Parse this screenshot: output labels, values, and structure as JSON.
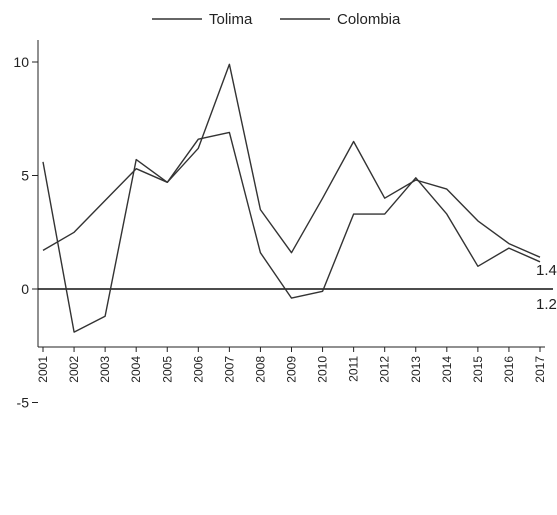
{
  "chart_data": {
    "type": "line",
    "title": "",
    "xlabel": "",
    "ylabel": "",
    "x": [
      "2001",
      "2002",
      "2003",
      "2004",
      "2005",
      "2006",
      "2007",
      "2008",
      "2009",
      "2010",
      "2011",
      "2012",
      "2013",
      "2014",
      "2015",
      "2016",
      "2017"
    ],
    "ylim": [
      -6,
      11
    ],
    "yticks": [
      -5,
      0,
      5,
      10
    ],
    "grid": false,
    "legend_position": "top-center",
    "series": [
      {
        "name": "Tolima",
        "values": [
          5.6,
          -1.9,
          -1.2,
          5.7,
          4.7,
          6.6,
          6.9,
          1.6,
          -0.4,
          -0.1,
          3.3,
          3.3,
          4.9,
          3.3,
          1.0,
          1.8,
          1.2
        ]
      },
      {
        "name": "Colombia",
        "values": [
          1.7,
          2.5,
          3.9,
          5.3,
          4.7,
          6.2,
          9.9,
          3.5,
          1.6,
          4.0,
          6.5,
          4.0,
          4.8,
          4.4,
          3.0,
          2.0,
          1.4
        ]
      }
    ],
    "end_labels": [
      "1.4",
      "1.2"
    ]
  },
  "colors": {
    "line": "#333333",
    "axis": "#222222",
    "zero_line": "#111111"
  }
}
